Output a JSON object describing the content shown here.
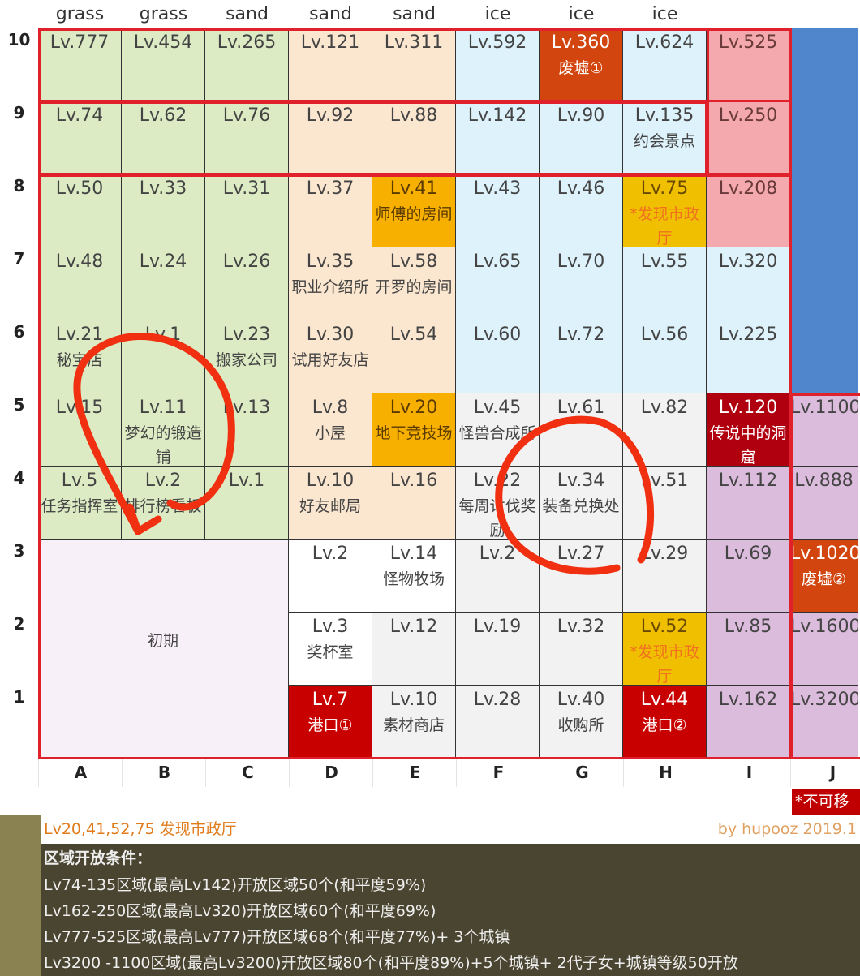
{
  "terrain_headers": [
    "grass",
    "grass",
    "sand",
    "sand",
    "sand",
    "ice",
    "ice",
    "ice"
  ],
  "columns": [
    "A",
    "B",
    "C",
    "D",
    "E",
    "F",
    "G",
    "H",
    "I",
    "J"
  ],
  "rows": [
    "10",
    "9",
    "8",
    "7",
    "6",
    "5",
    "4",
    "3",
    "2",
    "1"
  ],
  "colors": {
    "grass": "#dcebc4",
    "sand": "#fbe6cf",
    "ice": "#ddf2fb",
    "pink": "#f4a9ae",
    "ruin": "#d2450f",
    "orange": "#f7b000",
    "gold": "#f0c000",
    "red": "#c80000",
    "deepred": "#b0000f",
    "purple": "#dcbcdd",
    "gray": "#f2f2f2",
    "white": "#ffffff",
    "blue": "#4f86cc",
    "lavender": "#f8f0f8"
  },
  "grid": [
    [
      {
        "lv": "Lv.777",
        "k": "grass"
      },
      {
        "lv": "Lv.454",
        "k": "grass"
      },
      {
        "lv": "Lv.265",
        "k": "grass"
      },
      {
        "lv": "Lv.121",
        "k": "sand"
      },
      {
        "lv": "Lv.311",
        "k": "sand"
      },
      {
        "lv": "Lv.592",
        "k": "ice"
      },
      {
        "lv": "Lv.360",
        "nm": "废墟①",
        "k": "ruin"
      },
      {
        "lv": "Lv.624",
        "k": "ice"
      },
      {
        "lv": "Lv.525",
        "k": "pink"
      },
      {
        "lv": "",
        "k": "blue"
      }
    ],
    [
      {
        "lv": "Lv.74",
        "k": "grass"
      },
      {
        "lv": "Lv.62",
        "k": "grass"
      },
      {
        "lv": "Lv.76",
        "k": "grass"
      },
      {
        "lv": "Lv.92",
        "k": "sand"
      },
      {
        "lv": "Lv.88",
        "k": "sand"
      },
      {
        "lv": "Lv.142",
        "k": "ice"
      },
      {
        "lv": "Lv.90",
        "k": "ice"
      },
      {
        "lv": "Lv.135",
        "nm": "约会景点",
        "k": "ice"
      },
      {
        "lv": "Lv.250",
        "k": "pink"
      },
      {
        "lv": "",
        "k": "blue"
      }
    ],
    [
      {
        "lv": "Lv.50",
        "k": "grass"
      },
      {
        "lv": "Lv.33",
        "k": "grass"
      },
      {
        "lv": "Lv.31",
        "k": "grass"
      },
      {
        "lv": "Lv.37",
        "k": "sand"
      },
      {
        "lv": "Lv.41",
        "nm": "师傅的房间",
        "k": "orange"
      },
      {
        "lv": "Lv.43",
        "k": "ice"
      },
      {
        "lv": "Lv.46",
        "k": "ice"
      },
      {
        "lv": "Lv.75",
        "nm": "*发现市政厅",
        "k": "gold"
      },
      {
        "lv": "Lv.208",
        "k": "pink"
      },
      {
        "lv": "",
        "k": "blue"
      }
    ],
    [
      {
        "lv": "Lv.48",
        "k": "grass"
      },
      {
        "lv": "Lv.24",
        "k": "grass"
      },
      {
        "lv": "Lv.26",
        "k": "grass"
      },
      {
        "lv": "Lv.35",
        "nm": "职业介绍所",
        "k": "sand"
      },
      {
        "lv": "Lv.58",
        "nm": "开罗的房间",
        "k": "sand"
      },
      {
        "lv": "Lv.65",
        "k": "ice"
      },
      {
        "lv": "Lv.70",
        "k": "ice"
      },
      {
        "lv": "Lv.55",
        "k": "ice"
      },
      {
        "lv": "Lv.320",
        "k": "ice"
      },
      {
        "lv": "",
        "k": "blue"
      }
    ],
    [
      {
        "lv": "Lv.21",
        "nm": "秘宝店",
        "k": "grass"
      },
      {
        "lv": "Lv.1",
        "k": "grass"
      },
      {
        "lv": "Lv.23",
        "nm": "搬家公司",
        "k": "grass"
      },
      {
        "lv": "Lv.30",
        "nm": "试用好友店",
        "k": "sand"
      },
      {
        "lv": "Lv.54",
        "k": "sand"
      },
      {
        "lv": "Lv.60",
        "k": "ice"
      },
      {
        "lv": "Lv.72",
        "k": "ice"
      },
      {
        "lv": "Lv.56",
        "k": "ice"
      },
      {
        "lv": "Lv.225",
        "k": "ice"
      },
      {
        "lv": "",
        "k": "blue"
      }
    ],
    [
      {
        "lv": "Lv.15",
        "k": "grass"
      },
      {
        "lv": "Lv.11",
        "nm": "梦幻的锻造铺",
        "k": "grass"
      },
      {
        "lv": "Lv.13",
        "k": "grass"
      },
      {
        "lv": "Lv.8",
        "nm": "小屋",
        "k": "sand"
      },
      {
        "lv": "Lv.20",
        "nm": "地下竞技场",
        "k": "orange"
      },
      {
        "lv": "Lv.45",
        "nm": "怪兽合成所",
        "k": "gray"
      },
      {
        "lv": "Lv.61",
        "k": "gray"
      },
      {
        "lv": "Lv.82",
        "k": "gray"
      },
      {
        "lv": "Lv.120",
        "nm": "传说中的洞窟",
        "k": "deepred"
      },
      {
        "lv": "Lv.1100",
        "k": "purple"
      }
    ],
    [
      {
        "lv": "Lv.5",
        "nm": "任务指挥室",
        "k": "grass"
      },
      {
        "lv": "Lv.2",
        "nm": "排行榜看板",
        "k": "grass"
      },
      {
        "lv": "Lv.1",
        "k": "grass"
      },
      {
        "lv": "Lv.10",
        "nm": "好友邮局",
        "k": "sand"
      },
      {
        "lv": "Lv.16",
        "k": "sand"
      },
      {
        "lv": "Lv.22",
        "nm": "每周讨伐奖励",
        "k": "gray"
      },
      {
        "lv": "Lv.34",
        "nm": "装备兑换处",
        "k": "gray"
      },
      {
        "lv": "Lv.51",
        "k": "gray"
      },
      {
        "lv": "Lv.112",
        "k": "purple"
      },
      {
        "lv": "Lv.888",
        "k": "purple"
      }
    ],
    [
      null,
      null,
      null,
      {
        "lv": "Lv.2",
        "k": "white"
      },
      {
        "lv": "Lv.14",
        "nm": "怪物牧场",
        "k": "white"
      },
      {
        "lv": "Lv.2",
        "k": "gray"
      },
      {
        "lv": "Lv.27",
        "k": "gray"
      },
      {
        "lv": "Lv.29",
        "k": "gray"
      },
      {
        "lv": "Lv.69",
        "k": "purple"
      },
      {
        "lv": "Lv.1020",
        "nm": "废墟②",
        "k": "ruin"
      }
    ],
    [
      null,
      null,
      null,
      {
        "lv": "Lv.3",
        "nm": "奖杯室",
        "k": "white"
      },
      {
        "lv": "Lv.12",
        "k": "gray"
      },
      {
        "lv": "Lv.19",
        "k": "gray"
      },
      {
        "lv": "Lv.32",
        "k": "gray"
      },
      {
        "lv": "Lv.52",
        "nm": "*发现市政厅",
        "k": "gold"
      },
      {
        "lv": "Lv.85",
        "k": "purple"
      },
      {
        "lv": "Lv.1600",
        "k": "purple"
      }
    ],
    [
      null,
      null,
      null,
      {
        "lv": "Lv.7",
        "nm": "港口①",
        "k": "red"
      },
      {
        "lv": "Lv.10",
        "nm": "素材商店",
        "k": "gray"
      },
      {
        "lv": "Lv.28",
        "k": "gray"
      },
      {
        "lv": "Lv.40",
        "nm": "收购所",
        "k": "gray"
      },
      {
        "lv": "Lv.44",
        "nm": "港口②",
        "k": "red"
      },
      {
        "lv": "Lv.162",
        "k": "purple"
      },
      {
        "lv": "Lv.3200",
        "k": "purple"
      }
    ]
  ],
  "initial_area_label": "初期",
  "not_movable_badge": "*不可移",
  "legend": {
    "note": "Lv20,41,52,75 发现市政厅",
    "credit": "by hupooz 2019.1",
    "heading": "区域开放条件：",
    "lines": [
      "Lv74-135区域(最高Lv142)开放区域50个(和平度59%)",
      "Lv162-250区域(最高Lv320)开放区域60个(和平度69%)",
      "Lv777-525区域(最高Lv777)开放区域68个(和平度77%)+ 3个城镇",
      "Lv3200 -1100区域(最高Lv3200)开放区域80个(和平度89%)+5个城镇+ 2代子女+城镇等级50开放"
    ]
  }
}
